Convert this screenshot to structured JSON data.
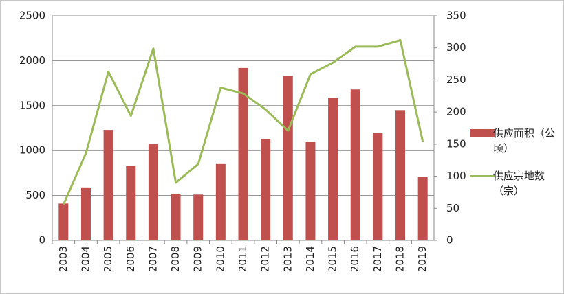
{
  "chart_data": {
    "type": "bar-line",
    "categories": [
      "2003",
      "2004",
      "2005",
      "2006",
      "2007",
      "2008",
      "2009",
      "2010",
      "2011",
      "2012",
      "2013",
      "2014",
      "2015",
      "2016",
      "2017",
      "2018",
      "2019"
    ],
    "series": [
      {
        "name": "供应面积（公顷）",
        "type": "bar",
        "color": "#c0504d",
        "values": [
          410,
          590,
          1230,
          830,
          1070,
          520,
          510,
          850,
          1920,
          1130,
          1830,
          1100,
          1590,
          1680,
          1200,
          1450,
          710
        ]
      },
      {
        "name": "供应宗地数（宗）",
        "type": "line",
        "axis": "y2",
        "color": "#9bbb59",
        "values": [
          56,
          136,
          263,
          194,
          299,
          90,
          119,
          238,
          229,
          204,
          171,
          259,
          277,
          302,
          302,
          312,
          154
        ]
      }
    ],
    "ylim": [
      0,
      2500
    ],
    "yticks": [
      0,
      500,
      1000,
      1500,
      2000,
      2500
    ],
    "y2lim": [
      0,
      350
    ],
    "y2ticks": [
      0,
      50,
      100,
      150,
      200,
      250,
      300,
      350
    ],
    "grid": true
  }
}
